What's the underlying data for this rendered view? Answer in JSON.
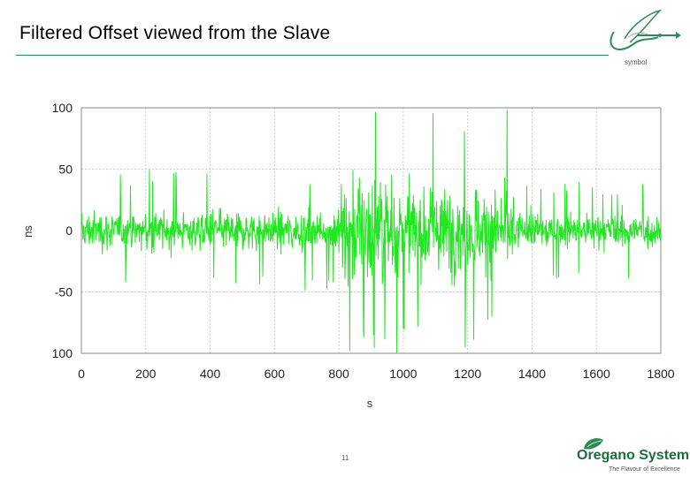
{
  "slide": {
    "title": "Filtered Offset viewed from the Slave",
    "page_number": "11"
  },
  "logos": {
    "symbol_text": "symbol",
    "oregano_name": "Oregano Systems",
    "oregano_tagline": "The Flavour of Excellence"
  },
  "colors": {
    "series": "#22e622",
    "accent": "#2e8b57",
    "grid": "#cccccc"
  },
  "chart_data": {
    "type": "line",
    "title": "",
    "xlabel": "s",
    "ylabel": "ns",
    "xlim": [
      0,
      1800
    ],
    "ylim": [
      -100,
      100
    ],
    "xticks": [
      "0",
      "200",
      "400",
      "600",
      "800",
      "1000",
      "1200",
      "1400",
      "1600",
      "1800"
    ],
    "yticks": [
      "100",
      "50",
      "0",
      "-50",
      "100"
    ],
    "grid": true,
    "legend": "none",
    "series": [
      {
        "segments": [
          {
            "x_range": [
              0,
              800
            ],
            "mean": 0,
            "amplitude": 20,
            "peak": 50
          },
          {
            "x_range": [
              800,
              1000
            ],
            "mean": 0,
            "amplitude": 60,
            "peak": 100
          },
          {
            "x_range": [
              1000,
              1350
            ],
            "mean": 0,
            "amplitude": 45,
            "peak": 100
          },
          {
            "x_range": [
              1350,
              1800
            ],
            "mean": 0,
            "amplitude": 18,
            "peak": 40
          }
        ]
      }
    ]
  }
}
